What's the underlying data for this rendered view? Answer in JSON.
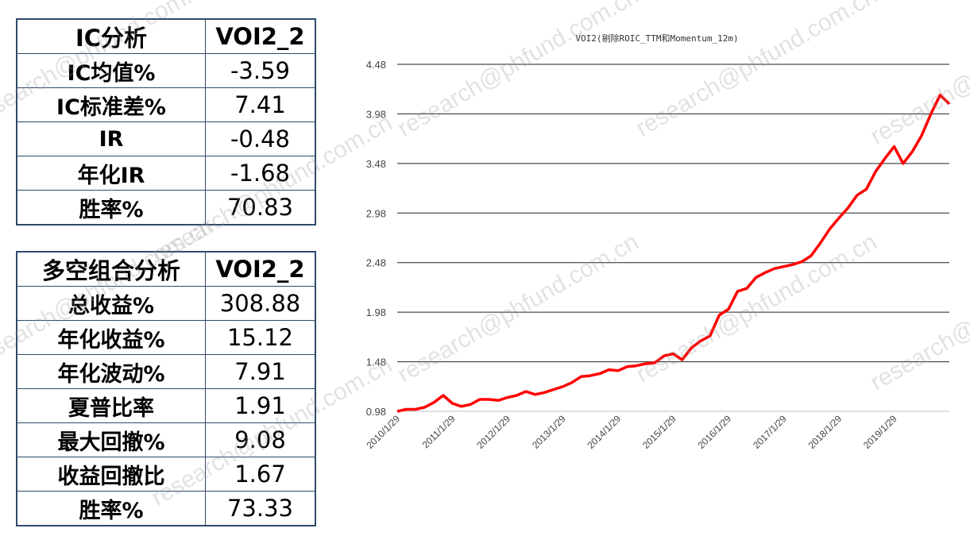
{
  "ic_table": {
    "header": {
      "label": "IC分析",
      "value": "VOI2_2"
    },
    "rows": [
      {
        "label": "IC均值%",
        "value": "-3.59"
      },
      {
        "label": "IC标准差%",
        "value": "7.41"
      },
      {
        "label": "IR",
        "value": "-0.48"
      },
      {
        "label": "年化IR",
        "value": "-1.68"
      },
      {
        "label": "胜率%",
        "value": "70.83"
      }
    ]
  },
  "long_short_table": {
    "header": {
      "label": "多空组合分析",
      "value": "VOI2_2"
    },
    "rows": [
      {
        "label": "总收益%",
        "value": "308.88"
      },
      {
        "label": "年化收益%",
        "value": "15.12"
      },
      {
        "label": "年化波动%",
        "value": "7.91"
      },
      {
        "label": "夏普比率",
        "value": "1.91"
      },
      {
        "label": "最大回撤%",
        "value": "9.08"
      },
      {
        "label": "收益回撤比",
        "value": "1.67"
      },
      {
        "label": "胜率%",
        "value": "73.33"
      }
    ]
  },
  "watermark": {
    "text": "research@phfund.com.cn"
  },
  "chart_data": {
    "type": "line",
    "title": "VOI2(剔除ROIC_TTM和Momentum_12m)",
    "xlabel": "",
    "ylabel": "",
    "ylim": [
      0.98,
      4.48
    ],
    "yticks": [
      "0.98",
      "1.48",
      "1.98",
      "2.48",
      "2.98",
      "3.48",
      "3.98",
      "4.48"
    ],
    "xtick_labels": [
      "2010/1/29",
      "2011/1/29",
      "2012/1/29",
      "2013/1/29",
      "2014/1/29",
      "2015/1/29",
      "2016/1/29",
      "2017/1/29",
      "2018/1/29",
      "2019/1/29"
    ],
    "grid": true,
    "line_color": "#ff0000",
    "series": [
      {
        "name": "",
        "x": [
          "2010/1/29",
          "2010/3/29",
          "2010/5/29",
          "2010/7/29",
          "2010/9/29",
          "2010/11/29",
          "2011/1/29",
          "2011/3/29",
          "2011/5/29",
          "2011/7/29",
          "2011/9/29",
          "2011/11/29",
          "2012/1/29",
          "2012/3/29",
          "2012/5/29",
          "2012/7/29",
          "2012/9/29",
          "2012/11/29",
          "2013/1/29",
          "2013/3/29",
          "2013/5/29",
          "2013/7/29",
          "2013/9/29",
          "2013/11/29",
          "2014/1/29",
          "2014/3/29",
          "2014/5/29",
          "2014/7/29",
          "2014/9/29",
          "2014/11/29",
          "2015/1/29",
          "2015/3/29",
          "2015/5/29",
          "2015/7/29",
          "2015/9/29",
          "2015/11/29",
          "2016/1/29",
          "2016/3/29",
          "2016/5/29",
          "2016/7/29",
          "2016/9/29",
          "2016/11/29",
          "2017/1/29",
          "2017/3/29",
          "2017/5/29",
          "2017/7/29",
          "2017/9/29",
          "2017/11/29",
          "2018/1/29",
          "2018/3/29",
          "2018/5/29",
          "2018/7/29",
          "2018/9/29",
          "2018/11/29",
          "2019/1/29",
          "2019/3/29",
          "2019/5/29",
          "2019/7/29",
          "2019/9/29",
          "2019/11/29",
          "2020/1/29"
        ],
        "values": [
          0.98,
          1.0,
          1.0,
          1.02,
          1.07,
          1.14,
          1.06,
          1.03,
          1.05,
          1.1,
          1.1,
          1.09,
          1.12,
          1.14,
          1.18,
          1.15,
          1.17,
          1.2,
          1.23,
          1.27,
          1.33,
          1.34,
          1.36,
          1.4,
          1.39,
          1.43,
          1.44,
          1.46,
          1.47,
          1.54,
          1.56,
          1.5,
          1.62,
          1.69,
          1.74,
          1.95,
          2.01,
          2.19,
          2.22,
          2.33,
          2.38,
          2.42,
          2.44,
          2.46,
          2.49,
          2.55,
          2.68,
          2.82,
          2.93,
          3.03,
          3.16,
          3.22,
          3.4,
          3.53,
          3.65,
          3.48,
          3.6,
          3.76,
          3.98,
          4.17,
          4.08
        ]
      }
    ]
  }
}
